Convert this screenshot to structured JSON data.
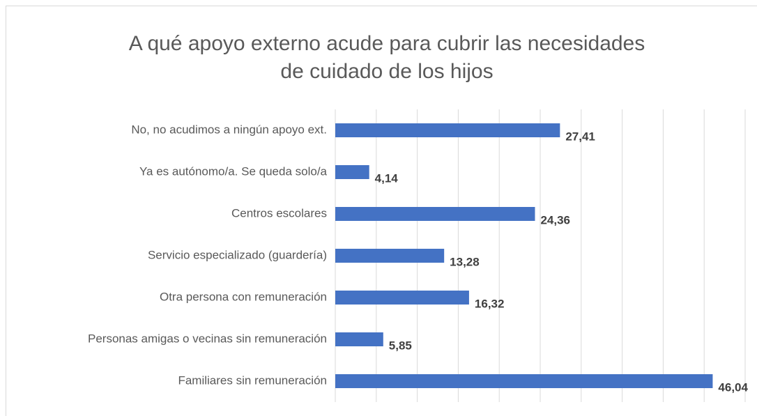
{
  "chart_data": {
    "type": "barh",
    "title": [
      "A qué apoyo externo acude para cubrir las necesidades",
      "de cuidado de los hijos"
    ],
    "categories": [
      "No, no acudimos a ningún apoyo ext.",
      "Ya es autónomo/a. Se queda solo/a",
      "Centros escolares",
      "Servicio especializado (guardería)",
      "Otra persona con remuneración",
      "Personas amigas o vecinas sin remuneración",
      "Familiares sin remuneración"
    ],
    "values": [
      27.41,
      4.14,
      24.36,
      13.28,
      16.32,
      5.85,
      46.04
    ],
    "value_labels": [
      "27,41",
      "4,14",
      "24,36",
      "13,28",
      "16,32",
      "5,85",
      "46,04"
    ],
    "color": "#4472c4",
    "xlim": [
      0,
      50
    ],
    "xticks": [
      0,
      5,
      10,
      15,
      20,
      25,
      30,
      35,
      40,
      45,
      50
    ],
    "grid": true
  }
}
